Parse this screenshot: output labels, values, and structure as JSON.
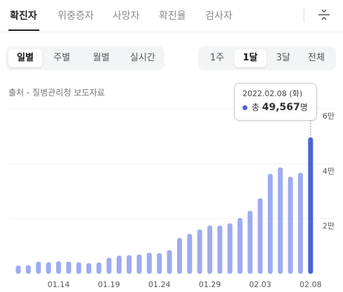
{
  "tabs": [
    "확진자",
    "위중증자",
    "사망자",
    "확진율",
    "검사자"
  ],
  "periods": [
    "일별",
    "주별",
    "월별",
    "실시간"
  ],
  "ranges": [
    "1주",
    "1달",
    "3달",
    "전체"
  ],
  "source": "출처 - 질병관리청 보도자료",
  "chart_data": {
    "type": "bar",
    "categories": [
      null,
      null,
      null,
      null,
      "01.14",
      null,
      null,
      null,
      null,
      "01.19",
      null,
      null,
      null,
      null,
      "01.24",
      null,
      null,
      null,
      null,
      "01.29",
      null,
      null,
      null,
      null,
      "02.03",
      null,
      null,
      null,
      null,
      "02.08"
    ],
    "values": [
      3005,
      3094,
      4385,
      4167,
      4538,
      4418,
      4194,
      3857,
      4071,
      5805,
      6603,
      6767,
      7009,
      7630,
      7513,
      8571,
      13012,
      14518,
      16096,
      17542,
      17528,
      18342,
      20270,
      22907,
      27443,
      36362,
      38691,
      35286,
      36719,
      49567
    ],
    "color": "#9eabf0",
    "highlight_color": "#4e62d8",
    "ylim": [
      0,
      60000
    ],
    "yticks": [
      {
        "value": 20000,
        "label": "2만"
      },
      {
        "value": 40000,
        "label": "4만"
      },
      {
        "value": 60000,
        "label": "6만"
      }
    ],
    "grid": true,
    "tooltip": {
      "date": "2022.02.08 (화)",
      "total": "총",
      "value": "49,567",
      "unit": "명"
    }
  }
}
